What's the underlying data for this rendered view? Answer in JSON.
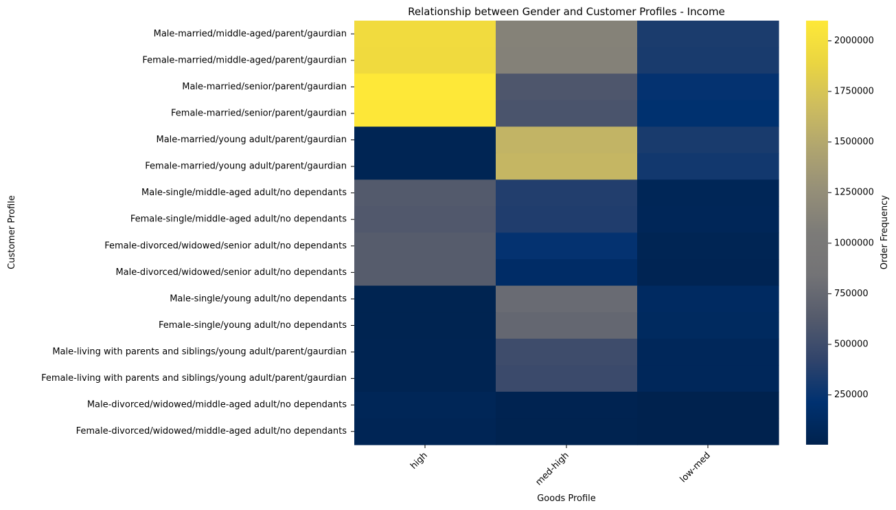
{
  "chart_data": {
    "type": "heatmap",
    "title": "Relationship between Gender and Customer Profiles - Income",
    "xlabel": "Goods Profile",
    "ylabel": "Customer Profile",
    "x_categories": [
      "high",
      "med-high",
      "low-med"
    ],
    "y_categories": [
      "Male-married/middle-aged/parent/gaurdian",
      "Female-married/middle-aged/parent/gaurdian",
      "Male-married/senior/parent/gaurdian",
      "Female-married/senior/parent/gaurdian",
      "Male-married/young adult/parent/gaurdian",
      "Female-married/young adult/parent/gaurdian",
      "Male-single/middle-aged adult/no dependants",
      "Female-single/middle-aged adult/no dependants",
      "Female-divorced/widowed/senior adult/no dependants",
      "Male-divorced/widowed/senior adult/no dependants",
      "Male-single/young adult/no dependants",
      "Female-single/young adult/no dependants",
      "Male-living with parents and siblings/young adult/parent/gaurdian",
      "Female-living with parents and siblings/young adult/parent/gaurdian",
      "Male-divorced/widowed/middle-aged adult/no dependants",
      "Female-divorced/widowed/middle-aged adult/no dependants"
    ],
    "values": [
      [
        1960000,
        1130000,
        330000
      ],
      [
        1950000,
        1120000,
        320000
      ],
      [
        2100000,
        590000,
        230000
      ],
      [
        2090000,
        570000,
        210000
      ],
      [
        40000,
        1600000,
        320000
      ],
      [
        40000,
        1620000,
        290000
      ],
      [
        620000,
        360000,
        60000
      ],
      [
        610000,
        350000,
        65000
      ],
      [
        640000,
        230000,
        40000
      ],
      [
        640000,
        150000,
        35000
      ],
      [
        25000,
        770000,
        120000
      ],
      [
        25000,
        740000,
        110000
      ],
      [
        30000,
        500000,
        80000
      ],
      [
        30000,
        480000,
        75000
      ],
      [
        60000,
        20000,
        5000
      ],
      [
        50000,
        15000,
        4000
      ]
    ],
    "colormap": "cividis",
    "colorbar": {
      "label": "Order Frequency",
      "vmin": 4000,
      "vmax": 2100000,
      "ticks": [
        250000,
        500000,
        750000,
        1000000,
        1250000,
        1500000,
        1750000,
        2000000
      ]
    },
    "grid": false
  }
}
